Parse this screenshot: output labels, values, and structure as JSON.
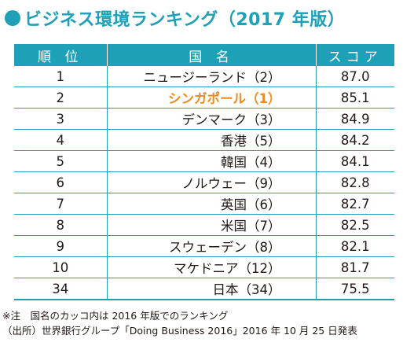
{
  "title": "ビジネス環境ランキング（2017 年版）",
  "table": {
    "headers": [
      "順 位",
      "国 名",
      "スコア"
    ],
    "rows": [
      {
        "rank": "1",
        "country": "ニュージーランド（2）",
        "score": "87.0"
      },
      {
        "rank": "2",
        "country": "シンガポール（1）",
        "score": "85.1"
      },
      {
        "rank": "3",
        "country": "デンマーク（3）",
        "score": "84.9"
      },
      {
        "rank": "4",
        "country": "香港（5）",
        "score": "84.2"
      },
      {
        "rank": "5",
        "country": "韓国（4）",
        "score": "84.1"
      },
      {
        "rank": "6",
        "country": "ノルウェー（9）",
        "score": "82.8"
      },
      {
        "rank": "7",
        "country": "英国（6）",
        "score": "82.7"
      },
      {
        "rank": "8",
        "country": "米国（7）",
        "score": "82.5"
      },
      {
        "rank": "9",
        "country": "スウェーデン（8）",
        "score": "82.1"
      },
      {
        "rank": "10",
        "country": "マケドニア（12）",
        "score": "81.7"
      },
      {
        "rank": "34",
        "country": "日本（34）",
        "score": "75.5"
      }
    ]
  },
  "notes": {
    "note": "※注　国名のカッコ内は 2016 年版でのランキング",
    "source": "（出所）世界銀行グループ「Doing Business 2016」2016 年 10 月 25 日発表"
  },
  "colors": {
    "accent": "#1ea0b7",
    "highlight": "#f08a1c"
  }
}
